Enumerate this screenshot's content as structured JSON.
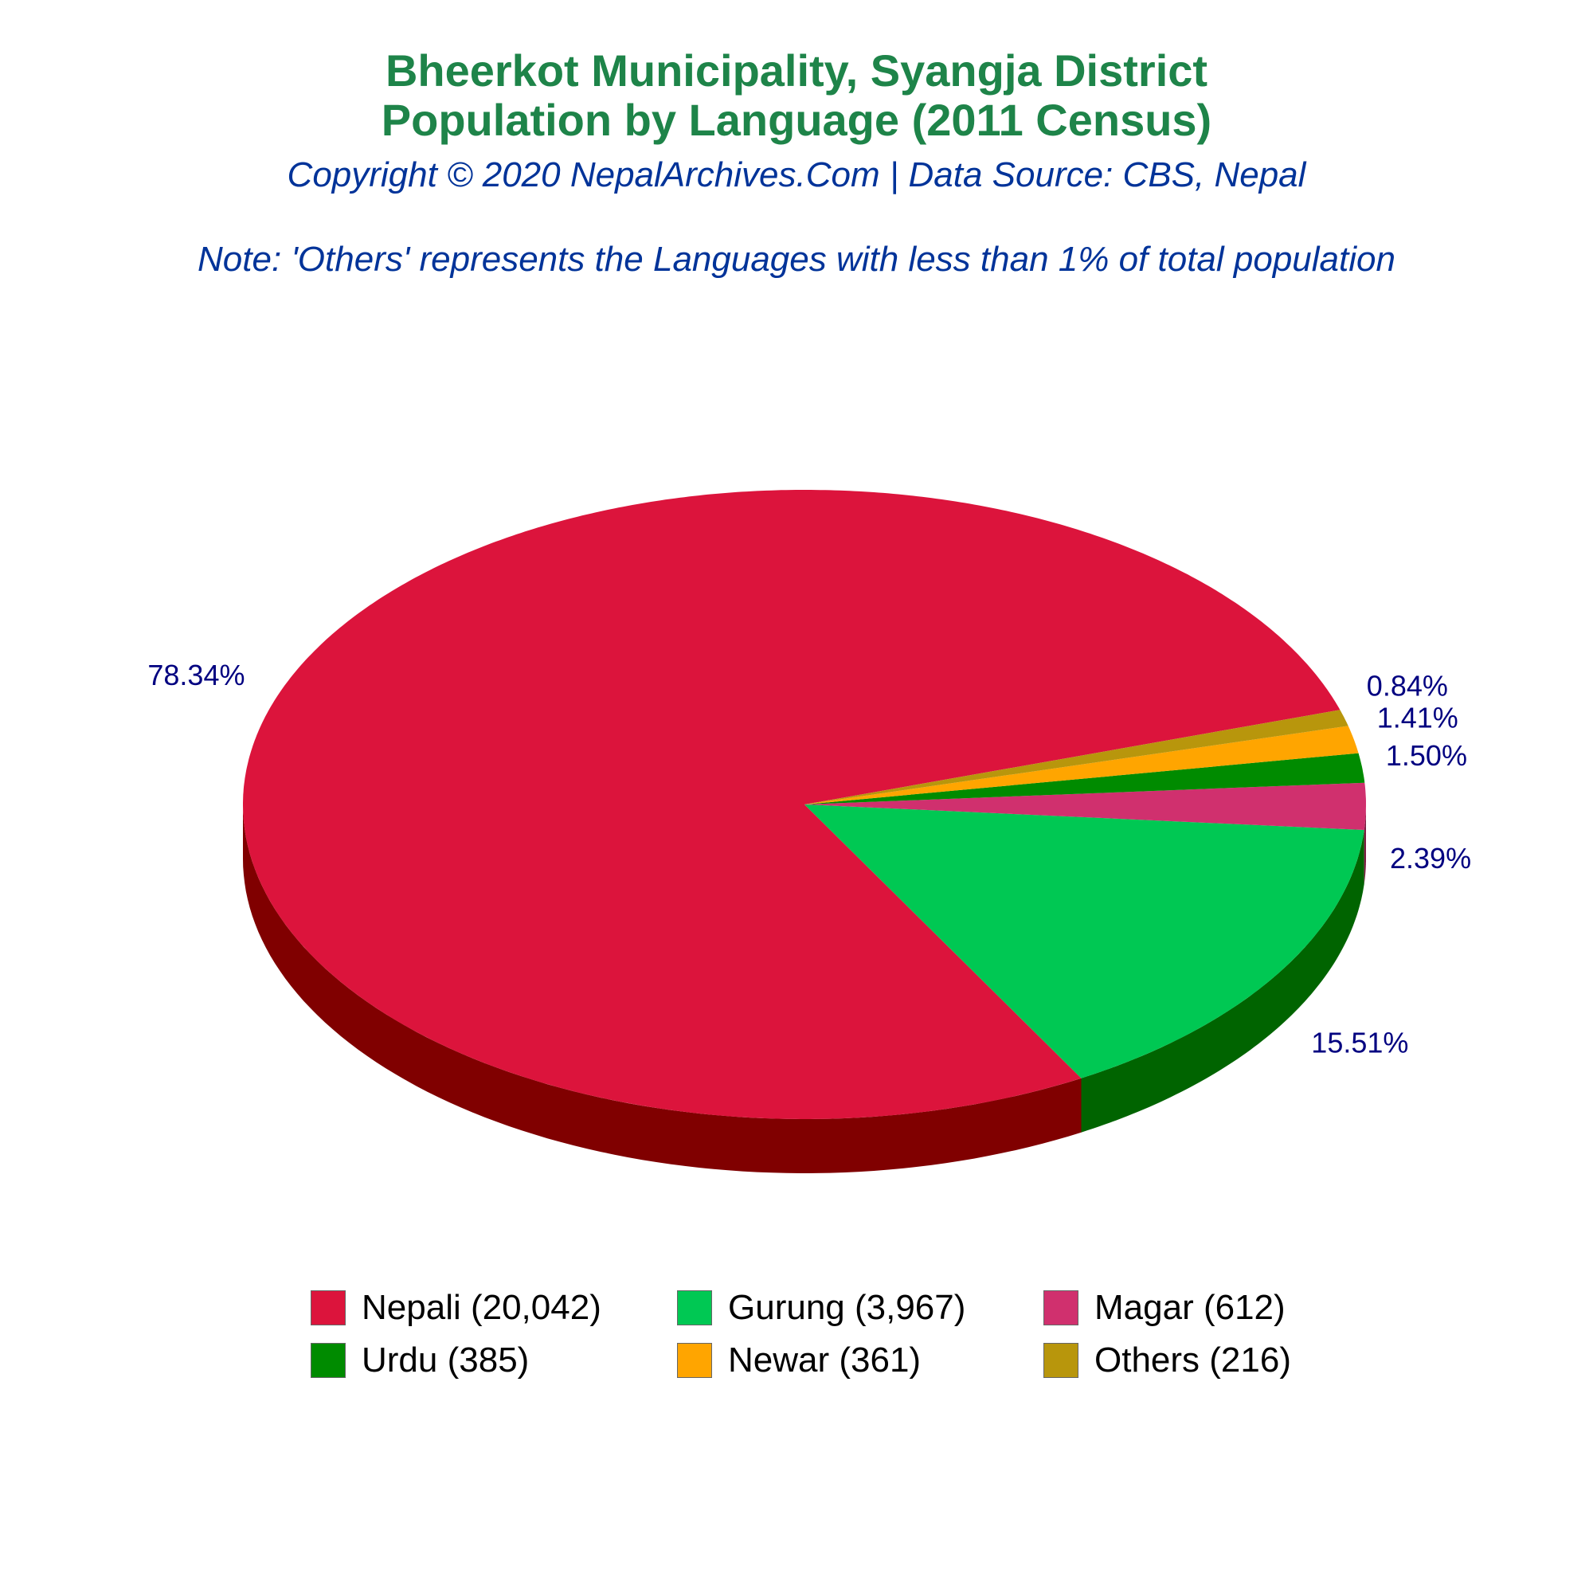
{
  "header": {
    "title_line1": "Bheerkot Municipality, Syangja District",
    "title_line2": "Population by Language (2011 Census)",
    "subtitle": "Copyright © 2020 NepalArchives.Com | Data Source: CBS, Nepal",
    "note": "Note: 'Others' represents the Languages with less than 1% of total population"
  },
  "chart_data": {
    "type": "pie",
    "style": "3d",
    "slices": [
      {
        "name": "Nepali",
        "value": 20042,
        "percent": "78.34%",
        "legend": "Nepali (20,042)",
        "color": "#dc143c",
        "side_color": "#800000"
      },
      {
        "name": "Gurung",
        "value": 3967,
        "percent": "15.51%",
        "legend": "Gurung (3,967)",
        "color": "#00c853",
        "side_color": "#006400"
      },
      {
        "name": "Magar",
        "value": 612,
        "percent": "2.39%",
        "legend": "Magar (612)",
        "color": "#d0306e",
        "side_color": "#7a1a40"
      },
      {
        "name": "Urdu",
        "value": 385,
        "percent": "1.50%",
        "legend": "Urdu (385)",
        "color": "#008b00",
        "side_color": "#004d00"
      },
      {
        "name": "Newar",
        "value": 361,
        "percent": "1.41%",
        "legend": "Newar (361)",
        "color": "#ffa500",
        "side_color": "#a06800"
      },
      {
        "name": "Others",
        "value": 216,
        "percent": "0.84%",
        "legend": "Others (216)",
        "color": "#b8960c",
        "side_color": "#6e5a07"
      }
    ],
    "label_color": "#000080",
    "legend_position": "bottom"
  }
}
